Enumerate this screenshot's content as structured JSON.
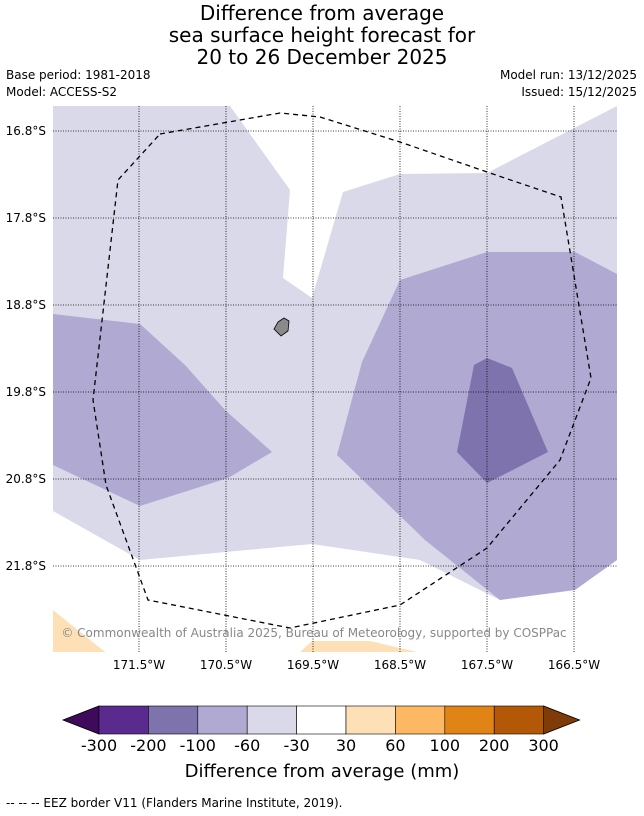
{
  "title_lines": [
    "Difference from average",
    "sea surface height forecast for",
    "20 to 26 December 2025"
  ],
  "meta": {
    "base_period": "Base period: 1981-2018",
    "model": "Model: ACCESS-S2",
    "model_run": "Model run: 13/12/2025",
    "issued": "Issued: 15/12/2025"
  },
  "map": {
    "lat_labels": [
      "16.8°S",
      "17.8°S",
      "18.8°S",
      "19.8°S",
      "20.8°S",
      "21.8°S"
    ],
    "lon_labels": [
      "171.5°W",
      "170.5°W",
      "169.5°W",
      "168.5°W",
      "167.5°W",
      "166.5°W"
    ],
    "copyright": "© Commonwealth of Australia 2025, Bureau of Meteorology, supported by COSPPac",
    "colors": {
      "band_m60_m30": "#d9d9e9",
      "band_m100_m60": "#b0a9d2",
      "band_m200_m100": "#7f73ad",
      "band_30_60": "#fde0b6",
      "land": "#8a8a8a"
    }
  },
  "colorbar": {
    "title": "Difference from average (mm)",
    "tick_labels": [
      "-300",
      "-200",
      "-100",
      "-60",
      "-30",
      "30",
      "60",
      "100",
      "200",
      "300"
    ],
    "colors": [
      "#5b2a8e",
      "#7f73ad",
      "#b0a9d2",
      "#d9d9e9",
      "#ffffff",
      "#fde0b6",
      "#fcb862",
      "#e08416",
      "#b35807"
    ],
    "under_color": "#3f0a5b",
    "over_color": "#7f3b08"
  },
  "footer": "--  --  -- EEZ border V11 (Flanders Marine Institute, 2019)."
}
